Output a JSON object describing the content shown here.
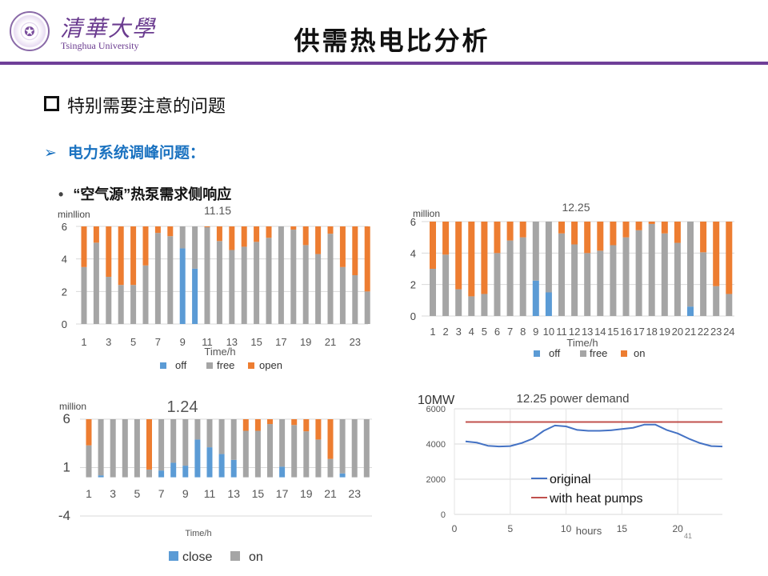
{
  "header": {
    "logo_cn": "清華大學",
    "logo_en": "Tsinghua University",
    "title": "供需热电比分析"
  },
  "content": {
    "bullet1": "特别需要注意的问题",
    "bullet2": "电力系统调峰问题：",
    "bullet3": "“空气源”热泵需求侧响应"
  },
  "colors": {
    "blue": "#5b9bd5",
    "gray": "#a5a5a5",
    "orange": "#ed7d31",
    "line_blue": "#4472c4",
    "line_red": "#c0504d",
    "accent": "#6f3f98"
  },
  "chart_data": [
    {
      "type": "bar",
      "stacked": true,
      "title": "11.15",
      "ylabel": "minllion",
      "xlabel": "Time/h",
      "ylim": [
        0,
        6
      ],
      "yticks": [
        "0",
        "2",
        "4",
        "6"
      ],
      "categories": [
        "1",
        "2",
        "3",
        "4",
        "5",
        "6",
        "7",
        "8",
        "9",
        "10",
        "11",
        "12",
        "13",
        "14",
        "15",
        "16",
        "17",
        "18",
        "19",
        "20",
        "21",
        "22",
        "23",
        "24"
      ],
      "xtick_labels": [
        "1",
        "3",
        "5",
        "7",
        "9",
        "11",
        "13",
        "15",
        "17",
        "19",
        "21",
        "23"
      ],
      "series": [
        {
          "name": "off",
          "values": [
            0,
            0,
            0,
            0,
            0,
            0,
            0,
            0,
            4.65,
            3.4,
            0,
            0,
            0,
            0,
            0,
            0,
            0,
            0,
            0,
            0,
            0,
            0,
            0,
            0
          ]
        },
        {
          "name": "free",
          "values": [
            3.5,
            5.0,
            2.9,
            2.4,
            2.4,
            3.6,
            5.6,
            5.4,
            1.35,
            2.6,
            5.95,
            5.1,
            4.55,
            4.75,
            5.05,
            5.3,
            6.0,
            5.8,
            4.85,
            4.3,
            5.55,
            3.5,
            3.0,
            2.0
          ]
        },
        {
          "name": "open",
          "values": [
            2.5,
            1.0,
            3.1,
            3.6,
            3.6,
            2.4,
            0.4,
            0.6,
            0,
            0,
            0.05,
            0.9,
            1.45,
            1.25,
            0.95,
            0.7,
            0,
            0.2,
            1.15,
            1.7,
            0.45,
            2.5,
            3.0,
            4.0
          ]
        }
      ]
    },
    {
      "type": "bar",
      "stacked": true,
      "title": "12.25",
      "ylabel": "million",
      "xlabel": "Time/h",
      "ylim": [
        0,
        6
      ],
      "yticks": [
        "0",
        "2",
        "4",
        "6"
      ],
      "categories": [
        "1",
        "2",
        "3",
        "4",
        "5",
        "6",
        "7",
        "8",
        "9",
        "10",
        "11",
        "12",
        "13",
        "14",
        "15",
        "16",
        "17",
        "18",
        "19",
        "20",
        "21",
        "22",
        "23",
        "24"
      ],
      "xtick_labels": [
        "1",
        "2",
        "3",
        "4",
        "5",
        "6",
        "7",
        "8",
        "9",
        "10",
        "11",
        "12",
        "13",
        "14",
        "15",
        "16",
        "17",
        "18",
        "19",
        "20",
        "21",
        "22",
        "23",
        "24"
      ],
      "series": [
        {
          "name": "off",
          "values": [
            0,
            0,
            0,
            0,
            0,
            0,
            0,
            0,
            2.25,
            1.5,
            0,
            0,
            0,
            0,
            0,
            0,
            0,
            0,
            0,
            0,
            0.6,
            0,
            0,
            0
          ]
        },
        {
          "name": "free",
          "values": [
            3.0,
            3.9,
            1.7,
            1.25,
            1.4,
            4.0,
            4.8,
            5.0,
            3.75,
            4.5,
            5.25,
            4.55,
            4.0,
            4.15,
            4.5,
            5.0,
            5.45,
            5.85,
            5.25,
            4.65,
            5.4,
            4.05,
            1.9,
            1.4
          ]
        },
        {
          "name": "on",
          "values": [
            3.0,
            2.1,
            4.3,
            4.75,
            4.6,
            2.0,
            1.2,
            1.0,
            0,
            0,
            0.75,
            1.45,
            2.0,
            1.85,
            1.5,
            1.0,
            0.55,
            0.15,
            0.75,
            1.35,
            0,
            1.95,
            4.1,
            4.6
          ]
        }
      ]
    },
    {
      "type": "bar",
      "stacked": true,
      "title": "1.24",
      "ylabel": "million",
      "xlabel": "Time/h",
      "ylim": [
        -4,
        6
      ],
      "yticks": [
        "-4",
        "1",
        "6"
      ],
      "categories": [
        "1",
        "2",
        "3",
        "4",
        "5",
        "6",
        "7",
        "8",
        "9",
        "10",
        "11",
        "12",
        "13",
        "14",
        "15",
        "16",
        "17",
        "18",
        "19",
        "20",
        "21",
        "22",
        "23",
        "24"
      ],
      "xtick_labels": [
        "1",
        "3",
        "5",
        "7",
        "9",
        "11",
        "13",
        "15",
        "17",
        "19",
        "21",
        "23"
      ],
      "series": [
        {
          "name": "close",
          "values": [
            0,
            0.2,
            0,
            0,
            0,
            0,
            0.7,
            1.5,
            1.2,
            3.9,
            3.1,
            2.4,
            1.8,
            0,
            0,
            0,
            1.1,
            0,
            0,
            0,
            0,
            0.4,
            0,
            0
          ]
        },
        {
          "name": "on",
          "values": [
            3.3,
            5.8,
            6,
            6,
            6,
            0.8,
            5.3,
            4.5,
            4.8,
            2.1,
            2.9,
            3.6,
            4.2,
            4.8,
            4.8,
            5.5,
            4.9,
            5.4,
            4.75,
            3.9,
            1.9,
            5.6,
            6,
            6
          ]
        },
        {
          "name": "",
          "values": [
            2.7,
            0,
            0,
            0,
            0,
            5.2,
            0,
            0,
            0,
            0,
            0,
            0,
            0,
            1.2,
            1.2,
            0.5,
            0,
            0.6,
            1.25,
            2.1,
            4.1,
            0,
            0,
            0
          ]
        }
      ]
    },
    {
      "type": "line",
      "title": "12.25 power demand",
      "ylabel": "10MW",
      "xlabel": "hours",
      "ylim": [
        0,
        6000
      ],
      "xlim": [
        0,
        24
      ],
      "yticks": [
        "0",
        "2000",
        "4000",
        "6000"
      ],
      "xticks": [
        "0",
        "5",
        "10",
        "15",
        "20"
      ],
      "x": [
        1,
        2,
        3,
        4,
        5,
        6,
        7,
        8,
        9,
        10,
        11,
        12,
        13,
        14,
        15,
        16,
        17,
        18,
        19,
        20,
        21,
        22,
        23,
        24
      ],
      "series": [
        {
          "name": "original",
          "values": [
            4150,
            4080,
            3900,
            3860,
            3880,
            4050,
            4300,
            4750,
            5050,
            5000,
            4800,
            4750,
            4750,
            4780,
            4850,
            4920,
            5100,
            5100,
            4800,
            4600,
            4300,
            4050,
            3880,
            3860
          ]
        },
        {
          "name": "with heat pumps",
          "values": [
            5250,
            5250,
            5250,
            5250,
            5250,
            5250,
            5250,
            5250,
            5250,
            5250,
            5250,
            5250,
            5250,
            5250,
            5250,
            5250,
            5250,
            5250,
            5250,
            5250,
            5250,
            5250,
            5250,
            5250
          ]
        }
      ]
    }
  ],
  "footer": {
    "page_number": "41"
  }
}
